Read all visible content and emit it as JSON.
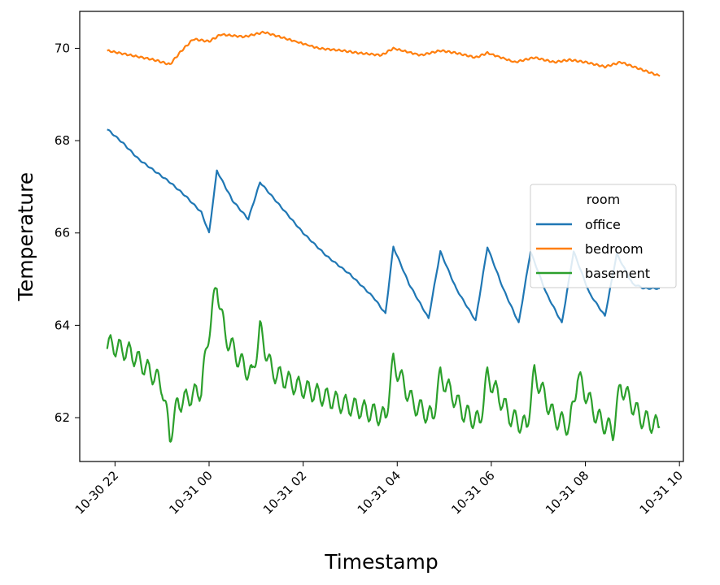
{
  "chart_data": {
    "type": "line",
    "xlabel": "Timestamp",
    "ylabel": "Temperature",
    "x_ticks": [
      "10-30 22",
      "10-31 00",
      "10-31 02",
      "10-31 04",
      "10-31 06",
      "10-31 08",
      "10-31 10"
    ],
    "y_ticks": [
      "62",
      "64",
      "66",
      "68",
      "70"
    ],
    "xlim": [
      "2023-10-30 21:15",
      "2023-10-31 10:05"
    ],
    "ylim": [
      61.05,
      70.8
    ],
    "grid": false,
    "legend": {
      "title": "room",
      "placement": "center-right"
    },
    "series": [
      {
        "name": "office",
        "color": "#1f77b4",
        "points": [
          [
            "2023-10-30 21:50",
            68.25
          ],
          [
            "2023-10-30 22:10",
            67.95
          ],
          [
            "2023-10-30 22:30",
            67.6
          ],
          [
            "2023-10-30 22:50",
            67.35
          ],
          [
            "2023-10-30 23:10",
            67.1
          ],
          [
            "2023-10-30 23:30",
            66.8
          ],
          [
            "2023-10-30 23:50",
            66.45
          ],
          [
            "2023-10-31 00:00",
            66.0
          ],
          [
            "2023-10-31 00:10",
            67.35
          ],
          [
            "2023-10-31 00:30",
            66.7
          ],
          [
            "2023-10-31 00:50",
            66.3
          ],
          [
            "2023-10-31 01:05",
            67.1
          ],
          [
            "2023-10-31 01:30",
            66.6
          ],
          [
            "2023-10-31 02:00",
            66.0
          ],
          [
            "2023-10-31 02:30",
            65.5
          ],
          [
            "2023-10-31 03:00",
            65.1
          ],
          [
            "2023-10-31 03:30",
            64.6
          ],
          [
            "2023-10-31 03:45",
            64.25
          ],
          [
            "2023-10-31 03:55",
            65.7
          ],
          [
            "2023-10-31 04:15",
            64.9
          ],
          [
            "2023-10-31 04:40",
            64.15
          ],
          [
            "2023-10-31 04:55",
            65.6
          ],
          [
            "2023-10-31 05:15",
            64.8
          ],
          [
            "2023-10-31 05:40",
            64.1
          ],
          [
            "2023-10-31 05:55",
            65.7
          ],
          [
            "2023-10-31 06:15",
            64.8
          ],
          [
            "2023-10-31 06:35",
            64.05
          ],
          [
            "2023-10-31 06:50",
            65.6
          ],
          [
            "2023-10-31 07:10",
            64.7
          ],
          [
            "2023-10-31 07:30",
            64.05
          ],
          [
            "2023-10-31 07:45",
            65.6
          ],
          [
            "2023-10-31 08:05",
            64.7
          ],
          [
            "2023-10-31 08:25",
            64.2
          ],
          [
            "2023-10-31 08:40",
            65.55
          ],
          [
            "2023-10-31 09:00",
            64.9
          ],
          [
            "2023-10-31 09:15",
            64.8
          ],
          [
            "2023-10-31 09:35",
            64.8
          ]
        ]
      },
      {
        "name": "bedroom",
        "color": "#ff7f0e",
        "points": [
          [
            "2023-10-30 21:50",
            69.95
          ],
          [
            "2023-10-30 22:20",
            69.85
          ],
          [
            "2023-10-30 22:50",
            69.75
          ],
          [
            "2023-10-30 23:10",
            69.65
          ],
          [
            "2023-10-30 23:25",
            69.95
          ],
          [
            "2023-10-30 23:40",
            70.2
          ],
          [
            "2023-10-31 00:00",
            70.15
          ],
          [
            "2023-10-31 00:15",
            70.3
          ],
          [
            "2023-10-31 00:45",
            70.25
          ],
          [
            "2023-10-31 01:10",
            70.35
          ],
          [
            "2023-10-31 01:40",
            70.2
          ],
          [
            "2023-10-31 02:20",
            70.0
          ],
          [
            "2023-10-31 02:50",
            69.95
          ],
          [
            "2023-10-31 03:10",
            69.9
          ],
          [
            "2023-10-31 03:40",
            69.85
          ],
          [
            "2023-10-31 03:55",
            70.0
          ],
          [
            "2023-10-31 04:30",
            69.85
          ],
          [
            "2023-10-31 04:55",
            69.95
          ],
          [
            "2023-10-31 05:15",
            69.9
          ],
          [
            "2023-10-31 05:40",
            69.8
          ],
          [
            "2023-10-31 05:55",
            69.9
          ],
          [
            "2023-10-31 06:30",
            69.7
          ],
          [
            "2023-10-31 06:55",
            69.8
          ],
          [
            "2023-10-31 07:20",
            69.7
          ],
          [
            "2023-10-31 07:40",
            69.75
          ],
          [
            "2023-10-31 08:00",
            69.7
          ],
          [
            "2023-10-31 08:25",
            69.6
          ],
          [
            "2023-10-31 08:45",
            69.7
          ],
          [
            "2023-10-31 09:10",
            69.55
          ],
          [
            "2023-10-31 09:35",
            69.4
          ]
        ]
      },
      {
        "name": "basement",
        "color": "#2ca02c",
        "points": [
          [
            "2023-10-30 21:50",
            63.6
          ],
          [
            "2023-10-30 22:20",
            63.4
          ],
          [
            "2023-10-30 22:50",
            62.9
          ],
          [
            "2023-10-30 23:00",
            62.7
          ],
          [
            "2023-10-30 23:10",
            61.6
          ],
          [
            "2023-10-30 23:20",
            62.3
          ],
          [
            "2023-10-30 23:50",
            62.6
          ],
          [
            "2023-10-31 00:00",
            63.9
          ],
          [
            "2023-10-31 00:10",
            64.9
          ],
          [
            "2023-10-31 00:20",
            63.8
          ],
          [
            "2023-10-31 00:40",
            63.2
          ],
          [
            "2023-10-31 00:55",
            62.9
          ],
          [
            "2023-10-31 01:05",
            63.9
          ],
          [
            "2023-10-31 01:20",
            63.0
          ],
          [
            "2023-10-31 01:50",
            62.7
          ],
          [
            "2023-10-31 02:20",
            62.5
          ],
          [
            "2023-10-31 02:50",
            62.3
          ],
          [
            "2023-10-31 03:20",
            62.15
          ],
          [
            "2023-10-31 03:45",
            62.0
          ],
          [
            "2023-10-31 03:55",
            63.2
          ],
          [
            "2023-10-31 04:20",
            62.3
          ],
          [
            "2023-10-31 04:45",
            62.0
          ],
          [
            "2023-10-31 04:55",
            62.9
          ],
          [
            "2023-10-31 05:25",
            62.1
          ],
          [
            "2023-10-31 05:45",
            61.9
          ],
          [
            "2023-10-31 05:55",
            62.9
          ],
          [
            "2023-10-31 06:25",
            62.0
          ],
          [
            "2023-10-31 06:45",
            61.8
          ],
          [
            "2023-10-31 06:55",
            62.95
          ],
          [
            "2023-10-31 07:20",
            62.0
          ],
          [
            "2023-10-31 07:40",
            61.8
          ],
          [
            "2023-10-31 07:50",
            62.9
          ],
          [
            "2023-10-31 08:15",
            62.0
          ],
          [
            "2023-10-31 08:35",
            61.7
          ],
          [
            "2023-10-31 08:45",
            62.7
          ],
          [
            "2023-10-31 09:10",
            62.0
          ],
          [
            "2023-10-31 09:35",
            61.8
          ]
        ]
      }
    ]
  }
}
